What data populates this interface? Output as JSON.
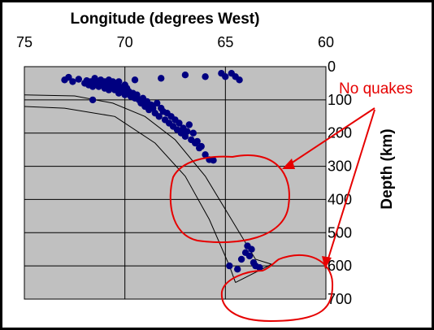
{
  "chart_data": {
    "type": "scatter",
    "title": "",
    "xlabel": "Longitude (degrees West)",
    "ylabel": "Depth (km)",
    "xlim": [
      75,
      60
    ],
    "ylim": [
      0,
      700
    ],
    "x_ticks": [
      "75",
      "70",
      "65",
      "60"
    ],
    "y_ticks": [
      "0",
      "100",
      "200",
      "300",
      "400",
      "500",
      "600",
      "700"
    ],
    "grid": true,
    "legend": "none",
    "plot_background": "#c0c0c0",
    "point_color": "#000080",
    "annotation_color": "#e60000",
    "annotation": "No quakes",
    "series": [
      {
        "points": [
          [
            73.0,
            40
          ],
          [
            72.8,
            32
          ],
          [
            72.6,
            45
          ],
          [
            72.3,
            38
          ],
          [
            72.0,
            50
          ],
          [
            71.9,
            42
          ],
          [
            71.8,
            55
          ],
          [
            71.7,
            45
          ],
          [
            71.6,
            60
          ],
          [
            71.5,
            35
          ],
          [
            71.4,
            48
          ],
          [
            71.3,
            60
          ],
          [
            71.2,
            40
          ],
          [
            71.1,
            55
          ],
          [
            71.0,
            65
          ],
          [
            71.0,
            45
          ],
          [
            70.9,
            50
          ],
          [
            70.9,
            60
          ],
          [
            70.8,
            70
          ],
          [
            70.8,
            40
          ],
          [
            70.7,
            55
          ],
          [
            70.7,
            65
          ],
          [
            70.6,
            45
          ],
          [
            70.6,
            60
          ],
          [
            70.5,
            50
          ],
          [
            70.5,
            70
          ],
          [
            70.4,
            58
          ],
          [
            70.4,
            68
          ],
          [
            70.3,
            45
          ],
          [
            70.3,
            80
          ],
          [
            70.2,
            62
          ],
          [
            70.1,
            72
          ],
          [
            70.0,
            55
          ],
          [
            70.0,
            85
          ],
          [
            69.9,
            65
          ],
          [
            69.8,
            75
          ],
          [
            69.7,
            90
          ],
          [
            69.6,
            80
          ],
          [
            69.5,
            95
          ],
          [
            69.4,
            85
          ],
          [
            69.3,
            100
          ],
          [
            69.2,
            110
          ],
          [
            69.1,
            95
          ],
          [
            69.0,
            120
          ],
          [
            68.9,
            105
          ],
          [
            68.8,
            130
          ],
          [
            68.7,
            115
          ],
          [
            68.6,
            125
          ],
          [
            68.5,
            140
          ],
          [
            68.4,
            110
          ],
          [
            68.3,
            150
          ],
          [
            68.2,
            125
          ],
          [
            68.1,
            135
          ],
          [
            68.0,
            160
          ],
          [
            67.9,
            140
          ],
          [
            67.8,
            170
          ],
          [
            67.7,
            150
          ],
          [
            67.6,
            180
          ],
          [
            67.5,
            160
          ],
          [
            67.4,
            190
          ],
          [
            67.3,
            170
          ],
          [
            67.2,
            200
          ],
          [
            67.1,
            185
          ],
          [
            67.0,
            210
          ],
          [
            66.9,
            195
          ],
          [
            66.8,
            175
          ],
          [
            66.7,
            220
          ],
          [
            66.6,
            200
          ],
          [
            66.5,
            230
          ],
          [
            66.4,
            225
          ],
          [
            66.3,
            245
          ],
          [
            66.2,
            240
          ],
          [
            66.0,
            265
          ],
          [
            65.8,
            280
          ],
          [
            65.6,
            282
          ],
          [
            71.6,
            100
          ],
          [
            69.5,
            40
          ],
          [
            68.2,
            35
          ],
          [
            67.0,
            25
          ],
          [
            66.0,
            30
          ],
          [
            65.2,
            20
          ],
          [
            65.0,
            30
          ],
          [
            64.7,
            20
          ],
          [
            64.5,
            30
          ],
          [
            64.3,
            40
          ],
          [
            64.2,
            580
          ],
          [
            64.0,
            560
          ],
          [
            63.9,
            540
          ],
          [
            63.8,
            570
          ],
          [
            63.7,
            550
          ],
          [
            63.6,
            590
          ],
          [
            63.5,
            600
          ],
          [
            64.8,
            600
          ],
          [
            64.4,
            610
          ],
          [
            63.3,
            605
          ]
        ]
      }
    ]
  },
  "slab_outline": [
    [
      [
        75,
        120
      ],
      [
        73,
        125
      ],
      [
        70.5,
        150
      ],
      [
        68.5,
        230
      ],
      [
        67,
        330
      ],
      [
        65.8,
        460
      ],
      [
        64.8,
        600
      ],
      [
        64.5,
        650
      ]
    ],
    [
      [
        75,
        85
      ],
      [
        72.5,
        88
      ],
      [
        70.6,
        110
      ],
      [
        69,
        150
      ],
      [
        67.5,
        220
      ],
      [
        66,
        330
      ],
      [
        64.8,
        450
      ],
      [
        63.5,
        580
      ],
      [
        62.7,
        595
      ],
      [
        64.5,
        650
      ]
    ]
  ]
}
